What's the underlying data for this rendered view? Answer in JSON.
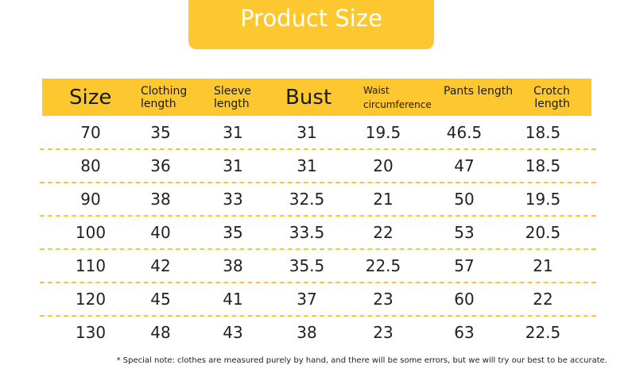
{
  "title": "Product Size",
  "headers": [
    "Size",
    "Clothing length",
    "Sleeve length",
    "Bust",
    "Waist circumference",
    "Pants length",
    "Crotch length"
  ],
  "rows": [
    [
      "70",
      "35",
      "31",
      "31",
      "19.5",
      "46.5",
      "18.5"
    ],
    [
      "80",
      "36",
      "31",
      "31",
      "20",
      "47",
      "18.5"
    ],
    [
      "90",
      "38",
      "33",
      "32.5",
      "21",
      "50",
      "19.5"
    ],
    [
      "100",
      "40",
      "35",
      "33.5",
      "22",
      "53",
      "20.5"
    ],
    [
      "110",
      "42",
      "38",
      "35.5",
      "22.5",
      "57",
      "21"
    ],
    [
      "120",
      "45",
      "41",
      "37",
      "23",
      "60",
      "22"
    ],
    [
      "130",
      "48",
      "43",
      "38",
      "23",
      "63",
      "22.5"
    ]
  ],
  "note": "* Special note: clothes are measured purely by hand, and there will be some errors, but we will try our best to be accurate.",
  "colors": {
    "accent": "#fdc82f"
  }
}
